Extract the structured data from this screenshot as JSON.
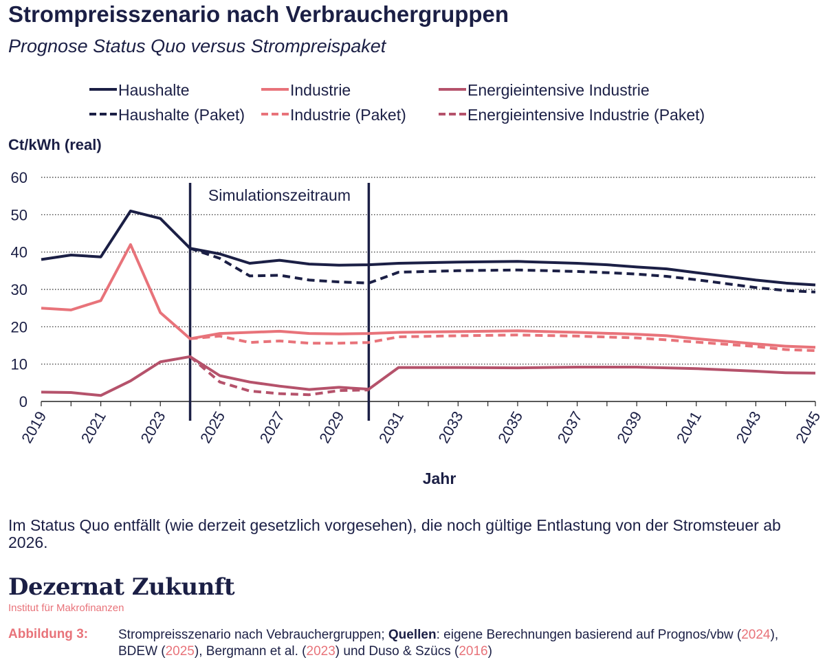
{
  "header": {
    "title": "Strompreisszenario nach Verbrauchergruppen",
    "subtitle": "Prognose Status Quo versus Strompreispaket"
  },
  "chart_data": {
    "type": "line",
    "title": "Strompreisszenario nach Verbrauchergruppen",
    "subtitle": "Prognose Status Quo versus Strompreispaket",
    "xlabel": "Jahr",
    "ylabel": "Ct/kWh (real)",
    "xlim": [
      2019,
      2045
    ],
    "ylim": [
      0,
      60
    ],
    "yticks": [
      0,
      10,
      20,
      30,
      40,
      50,
      60
    ],
    "xticks": [
      2019,
      2021,
      2023,
      2025,
      2027,
      2029,
      2031,
      2033,
      2035,
      2037,
      2039,
      2041,
      2043,
      2045
    ],
    "grid": true,
    "legend_position": "top",
    "annotation": {
      "label": "Simulationszeitraum",
      "start_year": 2024,
      "end_year": 2030
    },
    "colors": {
      "haushalte": "#1b1f45",
      "industrie": "#e8737a",
      "energieintensiv": "#b5526b",
      "grid": "#222222",
      "axis": "#222222"
    },
    "series": [
      {
        "name": "Haushalte",
        "key": "haushalte",
        "dashed": false,
        "x": [
          2019,
          2020,
          2021,
          2022,
          2023,
          2024,
          2025,
          2026,
          2027,
          2028,
          2029,
          2030,
          2031,
          2033,
          2035,
          2037,
          2038,
          2039,
          2040,
          2041,
          2043,
          2044,
          2045
        ],
        "values": [
          38.0,
          39.2,
          38.7,
          51.0,
          49.0,
          41.0,
          39.5,
          37.0,
          37.8,
          36.8,
          36.5,
          36.6,
          37.0,
          37.3,
          37.5,
          37.0,
          36.6,
          36.0,
          35.5,
          34.5,
          32.5,
          31.7,
          31.2
        ]
      },
      {
        "name": "Haushalte (Paket)",
        "key": "haushalte",
        "dashed": true,
        "x": [
          2024,
          2025,
          2026,
          2027,
          2028,
          2029,
          2030,
          2031,
          2033,
          2035,
          2037,
          2038,
          2039,
          2040,
          2041,
          2043,
          2044,
          2045
        ],
        "values": [
          41.0,
          38.3,
          33.6,
          33.8,
          32.5,
          32.0,
          31.7,
          34.6,
          35.0,
          35.2,
          34.8,
          34.5,
          34.1,
          33.5,
          32.6,
          30.5,
          29.7,
          29.3
        ]
      },
      {
        "name": "Industrie",
        "key": "industrie",
        "dashed": false,
        "x": [
          2019,
          2020,
          2021,
          2022,
          2023,
          2024,
          2025,
          2026,
          2027,
          2028,
          2029,
          2030,
          2031,
          2033,
          2035,
          2037,
          2039,
          2040,
          2041,
          2043,
          2044,
          2045
        ],
        "values": [
          25.0,
          24.5,
          27.0,
          42.0,
          23.8,
          16.8,
          18.2,
          18.5,
          18.8,
          18.2,
          18.1,
          18.2,
          18.5,
          18.7,
          18.9,
          18.5,
          18.0,
          17.6,
          16.8,
          15.4,
          14.8,
          14.5
        ]
      },
      {
        "name": "Industrie (Paket)",
        "key": "industrie",
        "dashed": true,
        "x": [
          2024,
          2025,
          2026,
          2027,
          2028,
          2029,
          2030,
          2031,
          2033,
          2035,
          2037,
          2039,
          2040,
          2041,
          2043,
          2044,
          2045
        ],
        "values": [
          16.8,
          17.5,
          15.8,
          16.2,
          15.6,
          15.6,
          15.8,
          17.3,
          17.6,
          17.8,
          17.5,
          17.0,
          16.5,
          15.9,
          14.7,
          13.9,
          13.6
        ]
      },
      {
        "name": "Energieintensive Industrie",
        "key": "energieintensiv",
        "dashed": false,
        "x": [
          2019,
          2020,
          2021,
          2022,
          2023,
          2024,
          2025,
          2026,
          2027,
          2028,
          2029,
          2030,
          2031,
          2033,
          2035,
          2037,
          2039,
          2041,
          2043,
          2044,
          2045
        ],
        "values": [
          2.5,
          2.4,
          1.6,
          5.5,
          10.6,
          12.0,
          6.9,
          5.2,
          4.1,
          3.2,
          3.8,
          3.3,
          9.1,
          9.1,
          9.0,
          9.2,
          9.2,
          8.8,
          8.1,
          7.7,
          7.6
        ]
      },
      {
        "name": "Energieintensive Industrie (Paket)",
        "key": "energieintensiv",
        "dashed": true,
        "x": [
          2024,
          2025,
          2026,
          2027,
          2028,
          2029,
          2030
        ],
        "values": [
          12.0,
          5.2,
          2.8,
          2.1,
          1.8,
          2.9,
          3.1
        ]
      }
    ]
  },
  "footer": {
    "note": "Im Status Quo entfällt (wie derzeit gesetzlich vorgesehen), die noch gültige Entlastung von der Stromsteuer ab 2026.",
    "brand": "Dezernat Zukunft",
    "brand_sub": "Institut für Makrofinanzen",
    "figure_label": "Abbildung 3:",
    "caption_prefix": "Strompreisszenario nach Vebrauchergruppen; ",
    "caption_sources_label": "Quellen",
    "caption_part1": ": eigene Berechnungen basierend auf Prognos/vbw (",
    "caption_year1": "2024",
    "caption_part2": "), BDEW (",
    "caption_year2": "2025",
    "caption_part3": "), Bergmann et al. (",
    "caption_year3": "2023",
    "caption_part4": ") und Duso & Szücs (",
    "caption_year4": "2016",
    "caption_part5": ")"
  }
}
